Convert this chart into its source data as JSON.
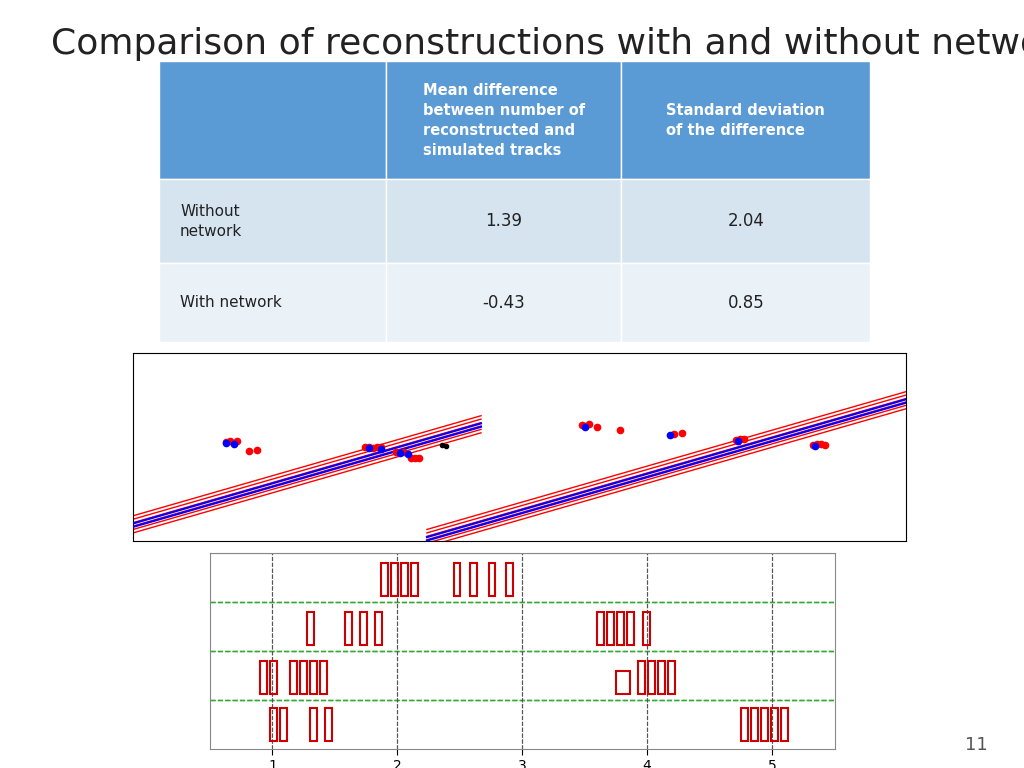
{
  "title": "Comparison of reconstructions with and without network",
  "title_fontsize": 26,
  "title_color": "#222222",
  "background_color": "#ffffff",
  "table": {
    "header_bg": "#5B9BD5",
    "row1_bg": "#D6E4F0",
    "row2_bg": "#EAF2F8",
    "header_text_color": "#ffffff",
    "row_text_color": "#222222",
    "col0_header": "",
    "col1_header": "Mean difference\nbetween number of\nreconstructed and\nsimulated tracks",
    "col2_header": "Standard deviation\nof the difference",
    "rows": [
      [
        "Without\nnetwork",
        "1.39",
        "2.04"
      ],
      [
        "With network",
        "-0.43",
        "0.85"
      ]
    ]
  },
  "slide_number": "11"
}
